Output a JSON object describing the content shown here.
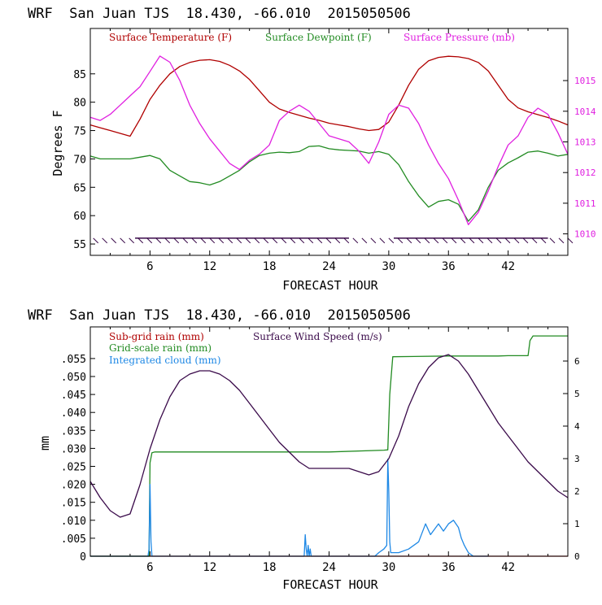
{
  "colors": {
    "temperature": "#b00000",
    "dewpoint": "#228b22",
    "pressure": "#e020e0",
    "wind": "#3a0a4a",
    "subgrid": "#b00000",
    "gridscale": "#228b22",
    "cloud": "#1e88e5",
    "axis": "#000000"
  },
  "chart_data": [
    {
      "type": "line",
      "title": "WRF  San Juan TJS  18.430, -66.010  2015050506",
      "xlabel": "FORECAST HOUR",
      "ylabel": "Degrees F",
      "xlim": [
        0,
        48
      ],
      "ylim": [
        53,
        93
      ],
      "y2lim": [
        1009.3,
        1016.7
      ],
      "xticks": [
        6,
        12,
        18,
        24,
        30,
        36,
        42
      ],
      "yticks": [
        55,
        60,
        65,
        70,
        75,
        80,
        85
      ],
      "y2ticks": [
        1010,
        1011,
        1012,
        1013,
        1014,
        1015
      ],
      "legend": "top",
      "series": [
        {
          "name": "Surface Temperature (F)",
          "axis": "left",
          "x": [
            0,
            1,
            2,
            3,
            4,
            5,
            6,
            7,
            8,
            9,
            10,
            11,
            12,
            13,
            14,
            15,
            16,
            17,
            18,
            19,
            20,
            21,
            22,
            23,
            24,
            25,
            26,
            27,
            28,
            29,
            30,
            31,
            32,
            33,
            34,
            35,
            36,
            37,
            38,
            39,
            40,
            41,
            42,
            43,
            44,
            45,
            46,
            47,
            48
          ],
          "values": [
            76,
            75.5,
            75,
            74.5,
            74,
            77,
            80.5,
            83,
            85,
            86.3,
            87,
            87.4,
            87.5,
            87.2,
            86.5,
            85.5,
            84,
            82,
            80,
            78.8,
            78.2,
            77.7,
            77.2,
            76.8,
            76.3,
            76,
            75.7,
            75.3,
            75,
            75.2,
            76.5,
            79.5,
            83,
            85.8,
            87.3,
            87.9,
            88.1,
            88,
            87.7,
            87,
            85.5,
            83,
            80.5,
            79,
            78.3,
            77.8,
            77.3,
            76.7,
            76
          ]
        },
        {
          "name": "Surface Dewpoint (F)",
          "axis": "left",
          "x": [
            0,
            1,
            2,
            3,
            4,
            5,
            6,
            7,
            8,
            9,
            10,
            11,
            12,
            13,
            14,
            15,
            16,
            17,
            18,
            19,
            20,
            21,
            22,
            23,
            24,
            25,
            26,
            27,
            28,
            29,
            30,
            31,
            32,
            33,
            34,
            35,
            36,
            37,
            38,
            39,
            40,
            41,
            42,
            43,
            44,
            45,
            46,
            47,
            48
          ],
          "values": [
            70.5,
            70,
            70,
            70,
            70,
            70.3,
            70.6,
            70,
            68,
            67,
            66,
            65.8,
            65.4,
            66,
            67,
            68,
            69.5,
            70.6,
            71,
            71.2,
            71.1,
            71.3,
            72.2,
            72.3,
            71.8,
            71.6,
            71.5,
            71.4,
            71,
            71.3,
            70.8,
            69,
            66,
            63.5,
            61.5,
            62.5,
            62.8,
            62,
            59,
            61,
            65,
            68,
            69.3,
            70.2,
            71.2,
            71.4,
            71,
            70.5,
            70.8
          ]
        },
        {
          "name": "Surface Pressure (mb)",
          "axis": "right",
          "x": [
            0,
            1,
            2,
            3,
            4,
            5,
            6,
            7,
            8,
            9,
            10,
            11,
            12,
            13,
            14,
            15,
            16,
            17,
            18,
            19,
            20,
            21,
            22,
            23,
            24,
            25,
            26,
            27,
            28,
            29,
            30,
            31,
            32,
            33,
            34,
            35,
            36,
            37,
            38,
            39,
            40,
            41,
            42,
            43,
            44,
            45,
            46,
            47,
            48
          ],
          "values": [
            1013.8,
            1013.7,
            1013.9,
            1014.2,
            1014.5,
            1014.8,
            1015.3,
            1015.8,
            1015.6,
            1015,
            1014.2,
            1013.6,
            1013.1,
            1012.7,
            1012.3,
            1012.1,
            1012.4,
            1012.6,
            1012.9,
            1013.7,
            1014,
            1014.2,
            1014,
            1013.6,
            1013.2,
            1013.1,
            1013,
            1012.7,
            1012.3,
            1013,
            1013.9,
            1014.2,
            1014.1,
            1013.6,
            1012.9,
            1012.3,
            1011.8,
            1011.1,
            1010.3,
            1010.7,
            1011.4,
            1012.2,
            1012.9,
            1013.2,
            1013.8,
            1014.1,
            1013.9,
            1013.3,
            1012.6
          ]
        }
      ]
    },
    {
      "type": "line",
      "title": "WRF  San Juan TJS  18.430, -66.010  2015050506",
      "xlabel": "FORECAST HOUR",
      "ylabel": "mm",
      "xlim": [
        0,
        48
      ],
      "ylim": [
        0,
        0.0638
      ],
      "y2lim": [
        0,
        7.05
      ],
      "xticks": [
        6,
        12,
        18,
        24,
        30,
        36,
        42
      ],
      "yticks": [
        0,
        0.005,
        0.01,
        0.015,
        0.02,
        0.025,
        0.03,
        0.035,
        0.04,
        0.045,
        0.05,
        0.055
      ],
      "ytick_labels": [
        "0",
        ".005",
        ".010",
        ".015",
        ".020",
        ".025",
        ".030",
        ".035",
        ".040",
        ".045",
        ".050",
        ".055"
      ],
      "y2ticks": [
        0,
        1,
        2,
        3,
        4,
        5,
        6
      ],
      "legend": "top-left",
      "series": [
        {
          "name": "Sub-grid rain (mm)",
          "axis": "left",
          "x": [
            0,
            48
          ],
          "values": [
            0,
            0
          ]
        },
        {
          "name": "Grid-scale rain (mm)",
          "axis": "left",
          "x": [
            0,
            5.9,
            6.0,
            6.2,
            6.5,
            12,
            18,
            24,
            29.5,
            29.9,
            30.1,
            30.4,
            36,
            41,
            42,
            44,
            44.2,
            44.5,
            48
          ],
          "values": [
            0,
            0,
            0.026,
            0.0288,
            0.029,
            0.029,
            0.029,
            0.029,
            0.0295,
            0.0296,
            0.045,
            0.0555,
            0.0557,
            0.0557,
            0.0558,
            0.0558,
            0.06,
            0.0613,
            0.0613
          ]
        },
        {
          "name": "Integrated cloud (mm)",
          "axis": "left",
          "x": [
            0,
            5.8,
            5.9,
            6.0,
            6.1,
            6.2,
            21.5,
            21.6,
            21.7,
            21.8,
            21.9,
            22,
            22.1,
            22.2,
            22.3,
            28.6,
            29,
            29.5,
            29.8,
            29.9,
            30.0,
            30.1,
            30.2,
            31,
            32,
            33,
            33.7,
            34.2,
            35,
            35.5,
            36,
            36.5,
            37,
            37.3,
            37.6,
            38,
            38.5,
            40
          ],
          "values": [
            0,
            0,
            0.002,
            0.02,
            0.004,
            0,
            0,
            0.006,
            0.002,
            0,
            0.003,
            0,
            0.002,
            0,
            0,
            0,
            0.001,
            0.002,
            0.003,
            0.027,
            0.018,
            0.004,
            0.001,
            0.001,
            0.002,
            0.004,
            0.009,
            0.006,
            0.009,
            0.007,
            0.009,
            0.01,
            0.008,
            0.005,
            0.003,
            0.001,
            0,
            0
          ]
        },
        {
          "name": "Surface Wind Speed (m/s)",
          "axis": "right",
          "x": [
            0,
            1,
            2,
            3,
            4,
            5,
            6,
            7,
            8,
            9,
            10,
            11,
            12,
            13,
            14,
            15,
            16,
            17,
            18,
            19,
            20,
            21,
            22,
            23,
            24,
            25,
            26,
            27,
            28,
            29,
            30,
            31,
            32,
            33,
            34,
            35,
            36,
            37,
            38,
            39,
            40,
            41,
            42,
            43,
            44,
            45,
            46,
            47,
            48
          ],
          "values": [
            2.3,
            1.8,
            1.4,
            1.2,
            1.3,
            2.2,
            3.3,
            4.2,
            4.9,
            5.4,
            5.6,
            5.7,
            5.7,
            5.6,
            5.4,
            5.1,
            4.7,
            4.3,
            3.9,
            3.5,
            3.2,
            2.9,
            2.7,
            2.7,
            2.7,
            2.7,
            2.7,
            2.6,
            2.5,
            2.6,
            3.0,
            3.7,
            4.6,
            5.3,
            5.8,
            6.1,
            6.2,
            6.0,
            5.6,
            5.1,
            4.6,
            4.1,
            3.7,
            3.3,
            2.9,
            2.6,
            2.3,
            2.0,
            1.8
          ]
        }
      ]
    }
  ]
}
